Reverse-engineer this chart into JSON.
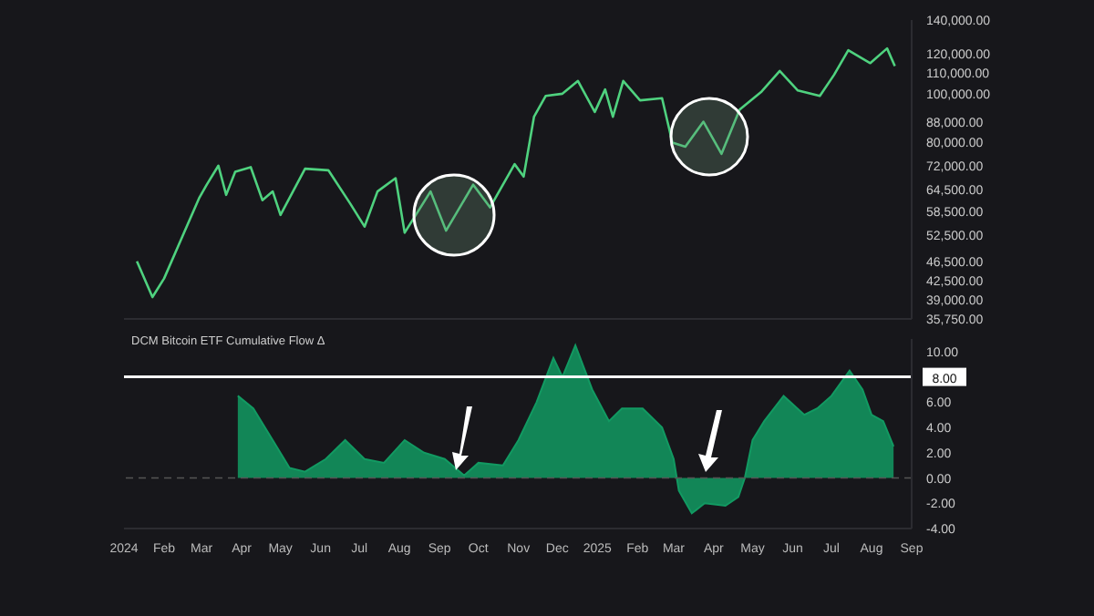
{
  "chart_data": [
    {
      "type": "line",
      "x": [
        "2024-01-11",
        "2024-01-23",
        "2024-02-01",
        "2024-02-15",
        "2024-02-28",
        "2024-03-05",
        "2024-03-14",
        "2024-03-20",
        "2024-03-27",
        "2024-04-08",
        "2024-04-17",
        "2024-04-25",
        "2024-05-01",
        "2024-05-20",
        "2024-06-07",
        "2024-06-24",
        "2024-07-05",
        "2024-07-15",
        "2024-07-29",
        "2024-08-05",
        "2024-08-25",
        "2024-09-06",
        "2024-09-27",
        "2024-10-10",
        "2024-10-29",
        "2024-11-05",
        "2024-11-13",
        "2024-11-22",
        "2024-12-05",
        "2024-12-17",
        "2024-12-30",
        "2025-01-07",
        "2025-01-13",
        "2025-01-21",
        "2025-02-03",
        "2025-02-20",
        "2025-02-28",
        "2025-03-10",
        "2025-03-24",
        "2025-04-07",
        "2025-04-21",
        "2025-05-08",
        "2025-05-22",
        "2025-06-05",
        "2025-06-22",
        "2025-07-03",
        "2025-07-14",
        "2025-07-31",
        "2025-08-13",
        "2025-08-19"
      ],
      "series": [
        {
          "color": "#4fd27f",
          "values": [
            46500,
            39500,
            43000,
            52000,
            62000,
            66000,
            72000,
            63000,
            70000,
            71500,
            61500,
            64000,
            57500,
            71000,
            70500,
            60500,
            54500,
            64000,
            68000,
            53000,
            64000,
            53500,
            66000,
            59500,
            72500,
            68500,
            90000,
            99000,
            100000,
            106000,
            92000,
            102000,
            90000,
            106000,
            97000,
            98000,
            80000,
            78500,
            88000,
            76000,
            93000,
            101000,
            111000,
            101500,
            99000,
            109000,
            122000,
            115000,
            123000,
            113500
          ]
        }
      ],
      "log": "y",
      "tick_labels": "y",
      "xlim": [
        "2024-01-01",
        "2025-09-01"
      ],
      "ylim": [
        35750,
        140000
      ],
      "yticks": [
        {
          "value": 35750,
          "label": "35,750.00"
        },
        {
          "value": 39000,
          "label": "39,000.00"
        },
        {
          "value": 42500,
          "label": "42,500.00"
        },
        {
          "value": 46500,
          "label": "46,500.00"
        },
        {
          "value": 52500,
          "label": "52,500.00"
        },
        {
          "value": 58500,
          "label": "58,500.00"
        },
        {
          "value": 64500,
          "label": "64,500.00"
        },
        {
          "value": 72000,
          "label": "72,000.00"
        },
        {
          "value": 80000,
          "label": "80,000.00"
        },
        {
          "value": 88000,
          "label": "88,000.00"
        },
        {
          "value": 100000,
          "label": "100,000.00"
        },
        {
          "value": 110000,
          "label": "110,000.00"
        },
        {
          "value": 120000,
          "label": "120,000.00"
        },
        {
          "value": 140000,
          "label": "140,000.00"
        }
      ]
    },
    {
      "type": "area",
      "title": "DCM Bitcoin ETF Cumulative Flow Δ",
      "x": [
        "2024-03-29",
        "2024-04-10",
        "2024-04-25",
        "2024-05-08",
        "2024-05-20",
        "2024-06-05",
        "2024-06-20",
        "2024-07-05",
        "2024-07-20",
        "2024-08-05",
        "2024-08-20",
        "2024-09-05",
        "2024-09-20",
        "2024-10-01",
        "2024-10-20",
        "2024-11-01",
        "2024-11-15",
        "2024-11-28",
        "2024-12-05",
        "2024-12-15",
        "2024-12-28",
        "2025-01-10",
        "2025-01-20",
        "2025-02-05",
        "2025-02-20",
        "2025-03-01",
        "2025-03-05",
        "2025-03-15",
        "2025-03-25",
        "2025-04-10",
        "2025-04-20",
        "2025-04-25",
        "2025-05-01",
        "2025-05-10",
        "2025-05-25",
        "2025-06-10",
        "2025-06-20",
        "2025-07-01",
        "2025-07-15",
        "2025-07-25",
        "2025-08-01",
        "2025-08-10",
        "2025-08-18"
      ],
      "series": [
        {
          "color": "#129a62",
          "values": [
            6.5,
            5.5,
            3,
            0.8,
            0.5,
            1.5,
            3,
            1.5,
            1.2,
            3,
            2,
            1.5,
            0.2,
            1.2,
            1,
            3,
            6,
            9.5,
            8,
            10.5,
            7,
            4.5,
            5.5,
            5.5,
            4,
            1.5,
            -1,
            -2.8,
            -2,
            -2.2,
            -1.5,
            0,
            3,
            4.5,
            6.5,
            5,
            5.5,
            6.5,
            8.5,
            7,
            5,
            4.5,
            2.5
          ]
        }
      ],
      "xlim": [
        "2024-01-01",
        "2025-09-01"
      ],
      "ylim": [
        -4,
        11
      ],
      "xticks": [
        {
          "value": "2024-01-01",
          "label": "2024"
        },
        {
          "value": "2024-02-01",
          "label": "Feb"
        },
        {
          "value": "2024-03-01",
          "label": "Mar"
        },
        {
          "value": "2024-04-01",
          "label": "Apr"
        },
        {
          "value": "2024-05-01",
          "label": "May"
        },
        {
          "value": "2024-06-01",
          "label": "Jun"
        },
        {
          "value": "2024-07-01",
          "label": "Jul"
        },
        {
          "value": "2024-08-01",
          "label": "Aug"
        },
        {
          "value": "2024-09-01",
          "label": "Sep"
        },
        {
          "value": "2024-10-01",
          "label": "Oct"
        },
        {
          "value": "2024-11-01",
          "label": "Nov"
        },
        {
          "value": "2024-12-01",
          "label": "Dec"
        },
        {
          "value": "2025-01-01",
          "label": "2025"
        },
        {
          "value": "2025-02-01",
          "label": "Feb"
        },
        {
          "value": "2025-03-01",
          "label": "Mar"
        },
        {
          "value": "2025-04-01",
          "label": "Apr"
        },
        {
          "value": "2025-05-01",
          "label": "May"
        },
        {
          "value": "2025-06-01",
          "label": "Jun"
        },
        {
          "value": "2025-07-01",
          "label": "Jul"
        },
        {
          "value": "2025-08-01",
          "label": "Aug"
        },
        {
          "value": "2025-09-01",
          "label": "Sep"
        }
      ],
      "yticks": [
        {
          "value": -4,
          "label": "-4.00"
        },
        {
          "value": -2,
          "label": "-2.00"
        },
        {
          "value": 0,
          "label": "0.00"
        },
        {
          "value": 2,
          "label": "2.00"
        },
        {
          "value": 4,
          "label": "4.00"
        },
        {
          "value": 6,
          "label": "6.00"
        },
        {
          "value": 10,
          "label": "10.00"
        }
      ],
      "ref_lines": [
        {
          "axis": "y",
          "value": 8,
          "label": "8.00",
          "color": "#ffffff",
          "line_style": "solid"
        },
        {
          "axis": "y",
          "value": 0,
          "color": "#555555",
          "line_style": "dashed"
        }
      ]
    }
  ]
}
